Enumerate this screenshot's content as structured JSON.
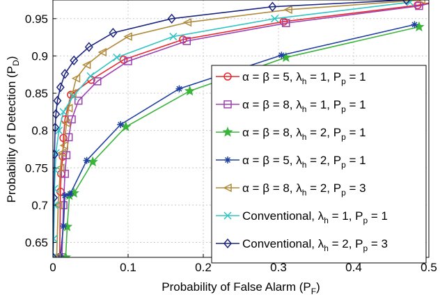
{
  "chart_data": {
    "type": "line",
    "title": "",
    "xlabel": "Probability of False Alarm (P_F)",
    "ylabel": "Probability of Detection (P_D)",
    "xlim": [
      0,
      0.5
    ],
    "ylim": [
      0.63,
      0.975
    ],
    "x_ticks": [
      0,
      0.1,
      0.2,
      0.3,
      0.4,
      0.5
    ],
    "x_tick_labels": [
      "0",
      "0.1",
      "0.2",
      "0.3",
      "0.4",
      "0.5"
    ],
    "y_ticks": [
      0.65,
      0.7,
      0.75,
      0.8,
      0.85,
      0.9,
      0.95
    ],
    "y_tick_labels": [
      "0.65",
      "0.7",
      "0.75",
      "0.8",
      "0.85",
      "0.9",
      "0.95"
    ],
    "grid": true,
    "legend_position": "bottom-right",
    "series": [
      {
        "name": "α = β = 5, λ_h = 1, P_p = 1",
        "color": "#e8262c",
        "marker": "circle",
        "x": [
          0.009,
          0.01,
          0.011,
          0.013,
          0.014,
          0.016,
          0.024,
          0.051,
          0.094,
          0.173,
          0.307,
          0.485,
          0.52
        ],
        "y": [
          0.63,
          0.718,
          0.742,
          0.765,
          0.79,
          0.815,
          0.848,
          0.868,
          0.895,
          0.922,
          0.946,
          0.968,
          0.975
        ]
      },
      {
        "name": "α = β = 8, λ_h = 1, P_p = 1",
        "color": "#9c3fb0",
        "marker": "square",
        "x": [
          0.012,
          0.014,
          0.016,
          0.018,
          0.021,
          0.025,
          0.034,
          0.059,
          0.1,
          0.178,
          0.31,
          0.487,
          0.52
        ],
        "y": [
          0.63,
          0.7,
          0.742,
          0.767,
          0.791,
          0.815,
          0.84,
          0.866,
          0.893,
          0.92,
          0.944,
          0.967,
          0.975
        ]
      },
      {
        "name": "α = β = 8, λ_h = 2, P_p = 1",
        "color": "#3cb43c",
        "marker": "star",
        "x": [
          0.017,
          0.019,
          0.022,
          0.028,
          0.053,
          0.097,
          0.182,
          0.31,
          0.487
        ],
        "y": [
          0.63,
          0.671,
          0.713,
          0.716,
          0.758,
          0.805,
          0.853,
          0.898,
          0.939
        ]
      },
      {
        "name": "α = β = 5, λ_h = 2, P_p = 1",
        "color": "#1f3fa0",
        "marker": "asterisk",
        "x": [
          0.01,
          0.014,
          0.016,
          0.023,
          0.045,
          0.09,
          0.168,
          0.304,
          0.481
        ],
        "y": [
          0.632,
          0.672,
          0.713,
          0.715,
          0.76,
          0.808,
          0.856,
          0.901,
          0.942
        ]
      },
      {
        "name": "α = β = 8, λ_h = 2, P_p = 3",
        "color": "#b08a3a",
        "marker": "triangle-left",
        "x": [
          0.005,
          0.007,
          0.01,
          0.012,
          0.015,
          0.018,
          0.021,
          0.026,
          0.031,
          0.045,
          0.066,
          0.1,
          0.179,
          0.313,
          0.49
        ],
        "y": [
          0.63,
          0.7,
          0.75,
          0.77,
          0.78,
          0.81,
          0.83,
          0.85,
          0.87,
          0.888,
          0.905,
          0.926,
          0.945,
          0.962,
          0.975
        ]
      },
      {
        "name": "Conventional,  λ_h = 1, P_p = 1",
        "color": "#2ec4c4",
        "marker": "x",
        "x": [
          0.0,
          0.001,
          0.002,
          0.002,
          0.003,
          0.004,
          0.008,
          0.014,
          0.027,
          0.05,
          0.085,
          0.16,
          0.295,
          0.475
        ],
        "y": [
          0.63,
          0.655,
          0.7,
          0.722,
          0.747,
          0.77,
          0.8,
          0.825,
          0.846,
          0.873,
          0.898,
          0.926,
          0.95,
          0.972
        ]
      },
      {
        "name": "Conventional,  λ_h = 2, P_p = 3",
        "color": "#1a237e",
        "marker": "diamond",
        "x": [
          0.0,
          0.001,
          0.002,
          0.003,
          0.004,
          0.006,
          0.01,
          0.016,
          0.028,
          0.048,
          0.08,
          0.158,
          0.292,
          0.47
        ],
        "y": [
          0.63,
          0.71,
          0.768,
          0.804,
          0.822,
          0.84,
          0.858,
          0.876,
          0.894,
          0.912,
          0.931,
          0.95,
          0.966,
          0.975
        ]
      }
    ]
  },
  "legend": {
    "items": [
      {
        "marker": "circle",
        "color": "#e8262c",
        "p1": "α = β = 5, λ",
        "sub1": "h",
        "p2": " = 1, P",
        "sub2": "p",
        "p3": " = 1"
      },
      {
        "marker": "square",
        "color": "#9c3fb0",
        "p1": "α = β = 8, λ",
        "sub1": "h",
        "p2": " = 1, P",
        "sub2": "p",
        "p3": " = 1"
      },
      {
        "marker": "star",
        "color": "#3cb43c",
        "p1": "α = β = 8, λ",
        "sub1": "h",
        "p2": " = 2, P",
        "sub2": "p",
        "p3": " = 1"
      },
      {
        "marker": "asterisk",
        "color": "#1f3fa0",
        "p1": "α = β = 5, λ",
        "sub1": "h",
        "p2": " = 2, P",
        "sub2": "p",
        "p3": " = 1"
      },
      {
        "marker": "triangle-left",
        "color": "#b08a3a",
        "p1": "α = β = 8, λ",
        "sub1": "h",
        "p2": " = 2, P",
        "sub2": "p",
        "p3": " = 3"
      },
      {
        "marker": "x",
        "color": "#2ec4c4",
        "p1": "Conventional,  λ",
        "sub1": "h",
        "p2": " = 1, P",
        "sub2": "p",
        "p3": " = 1"
      },
      {
        "marker": "diamond",
        "color": "#1a237e",
        "p1": "Conventional,  λ",
        "sub1": "h",
        "p2": " = 2, P",
        "sub2": "p",
        "p3": " = 3"
      }
    ]
  },
  "axis_text": {
    "xlabel_main": "Probability of False Alarm (P",
    "xlabel_sub": "F",
    "xlabel_end": ")",
    "ylabel_main": "Probability of Detection (P",
    "ylabel_sub": "D",
    "ylabel_end": ")"
  }
}
